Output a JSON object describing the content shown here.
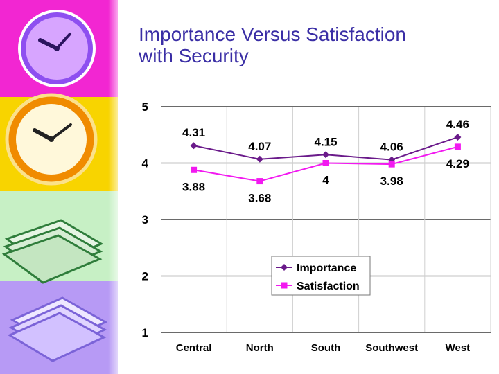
{
  "slide": {
    "title_line1": "Importance Versus Satisfaction",
    "title_line2": "with Security"
  },
  "theme": {
    "title_color": "#3a2ea5",
    "importance_color": "#6a1a8a",
    "satisfaction_color": "#f219f0"
  },
  "decor_icons": [
    "clock-icon",
    "clock-icon",
    "paper-stack-icon",
    "paper-stack-icon"
  ],
  "chart_data": {
    "type": "line",
    "title": "Importance Versus Satisfaction with Security",
    "xlabel": "",
    "ylabel": "",
    "categories": [
      "Central",
      "North",
      "South",
      "Southwest",
      "West"
    ],
    "ylim": [
      1,
      5
    ],
    "yticks": [
      "1",
      "2",
      "3",
      "4",
      "5"
    ],
    "grid": true,
    "legend": "center",
    "series": [
      {
        "name": "Importance",
        "marker": "diamond",
        "values": [
          4.31,
          4.07,
          4.15,
          4.06,
          4.46
        ],
        "labels": [
          "4.31",
          "4.07",
          "4.15",
          "4.06",
          "4.46"
        ]
      },
      {
        "name": "Satisfaction",
        "marker": "square",
        "values": [
          3.88,
          3.68,
          4,
          3.98,
          4.29
        ],
        "labels": [
          "3.88",
          "3.68",
          "4",
          "3.98",
          "4.29"
        ]
      }
    ]
  }
}
